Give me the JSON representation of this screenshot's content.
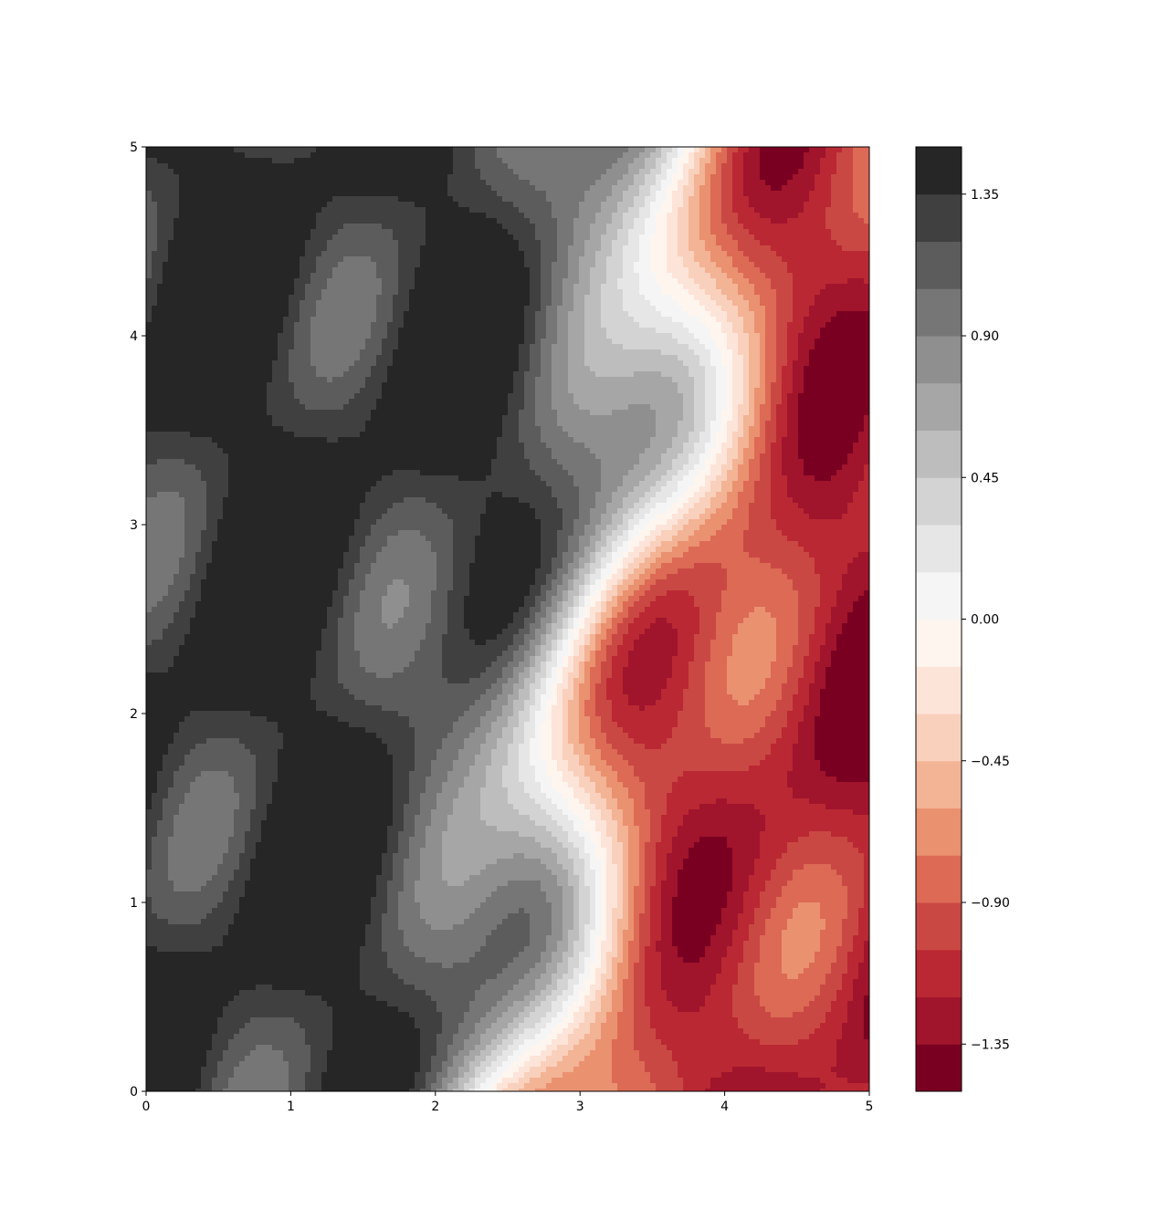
{
  "chart_data": {
    "type": "heatmap",
    "subtype": "filled-contour",
    "title": "",
    "xlabel": "",
    "ylabel": "",
    "xlim": [
      0,
      5
    ],
    "ylim": [
      0,
      5
    ],
    "x_ticks": [
      0,
      1,
      2,
      3,
      4,
      5
    ],
    "y_ticks": [
      0,
      1,
      2,
      3,
      4,
      5
    ],
    "x_tick_labels": [
      "0",
      "1",
      "2",
      "3",
      "4",
      "5"
    ],
    "y_tick_labels": [
      "0",
      "1",
      "2",
      "3",
      "4",
      "5"
    ],
    "grid": false,
    "colorbar": {
      "placement": "right",
      "range": [
        -1.5,
        1.5
      ],
      "levels": [
        -1.5,
        -1.35,
        -1.2,
        -1.05,
        -0.9,
        -0.75,
        -0.6,
        -0.45,
        -0.3,
        -0.15,
        0.0,
        0.15,
        0.3,
        0.45,
        0.6,
        0.75,
        0.9,
        1.05,
        1.2,
        1.35,
        1.5
      ],
      "band_colors": [
        "#7a0021",
        "#a0142c",
        "#ba2833",
        "#ca4843",
        "#dc6a55",
        "#ea9170",
        "#f3b395",
        "#f9d0bc",
        "#fde4d8",
        "#fff5ef",
        "#f5f5f5",
        "#e6e6e6",
        "#d3d3d3",
        "#bdbdbd",
        "#a6a6a6",
        "#8f8f8f",
        "#767676",
        "#5c5c5c",
        "#404040",
        "#262626"
      ],
      "ticks": [
        -1.35,
        -0.9,
        -0.45,
        0.0,
        0.45,
        0.9,
        1.35
      ],
      "tick_labels": [
        "−1.35",
        "−0.90",
        "−0.45",
        "0.00",
        "0.45",
        "0.90",
        "1.35"
      ]
    },
    "field_description": "Wavy contour field: positive (gray) regions on the left, negative (red) regions on the right, with a diagonal band of zero crossing from bottom-center to top-right."
  }
}
